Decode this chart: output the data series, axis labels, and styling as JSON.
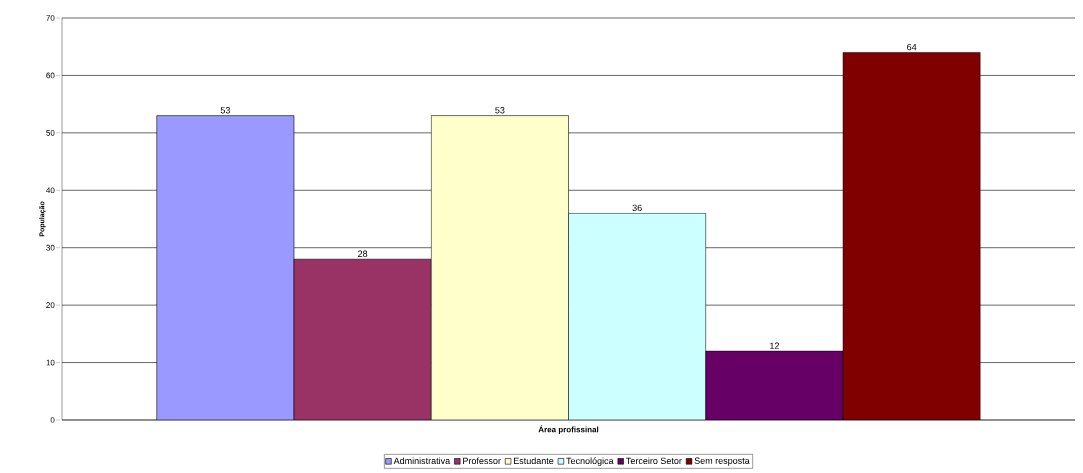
{
  "chart_data": {
    "type": "bar",
    "xlabel": "Área profissinal",
    "ylabel": "População",
    "categories": [
      null
    ],
    "series": [
      {
        "name": "Administrativa",
        "color": "#9999ff",
        "values": [
          53
        ]
      },
      {
        "name": "Professor",
        "color": "#993366",
        "values": [
          28
        ]
      },
      {
        "name": "Estudante",
        "color": "#ffffcc",
        "values": [
          53
        ]
      },
      {
        "name": "Tecnológica",
        "color": "#ccffff",
        "values": [
          36
        ]
      },
      {
        "name": "Terceiro Setor",
        "color": "#660066",
        "values": [
          12
        ]
      },
      {
        "name": "Sem resposta",
        "color": "#800000",
        "values": [
          64
        ]
      }
    ],
    "ylim": [
      0,
      70
    ],
    "yticks": [
      0,
      10,
      20,
      30,
      40,
      50,
      60,
      70
    ],
    "grid": "y",
    "data_labels": true,
    "legend": "bottom"
  }
}
